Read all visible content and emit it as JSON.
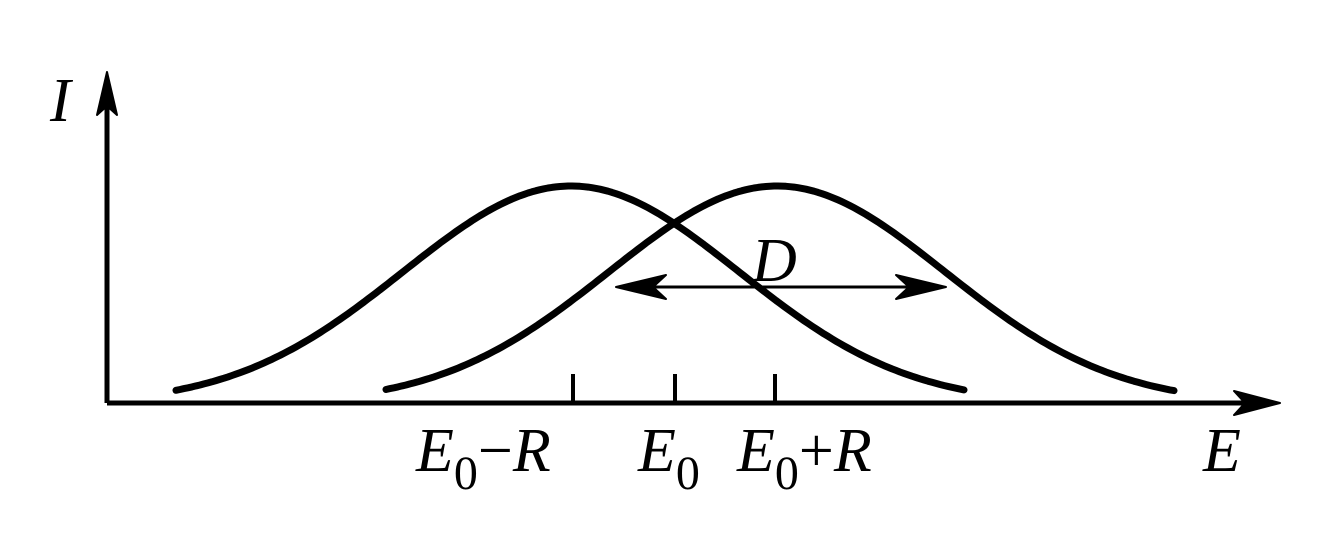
{
  "axes": {
    "y_label": "I",
    "x_label": "E"
  },
  "annotation": {
    "width_label": "D"
  },
  "ticks": [
    {
      "main": "E",
      "sub": "0",
      "op": "−",
      "suffix": "R"
    },
    {
      "main": "E",
      "sub": "0",
      "op": "",
      "suffix": ""
    },
    {
      "main": "E",
      "sub": "0",
      "op": "+",
      "suffix": "R"
    }
  ],
  "curves": [
    {
      "shape": "bell",
      "center": "E0 - R"
    },
    {
      "shape": "bell",
      "center": "E0 + R"
    }
  ],
  "colors": {
    "ink": "#000000",
    "background": "#ffffff"
  }
}
